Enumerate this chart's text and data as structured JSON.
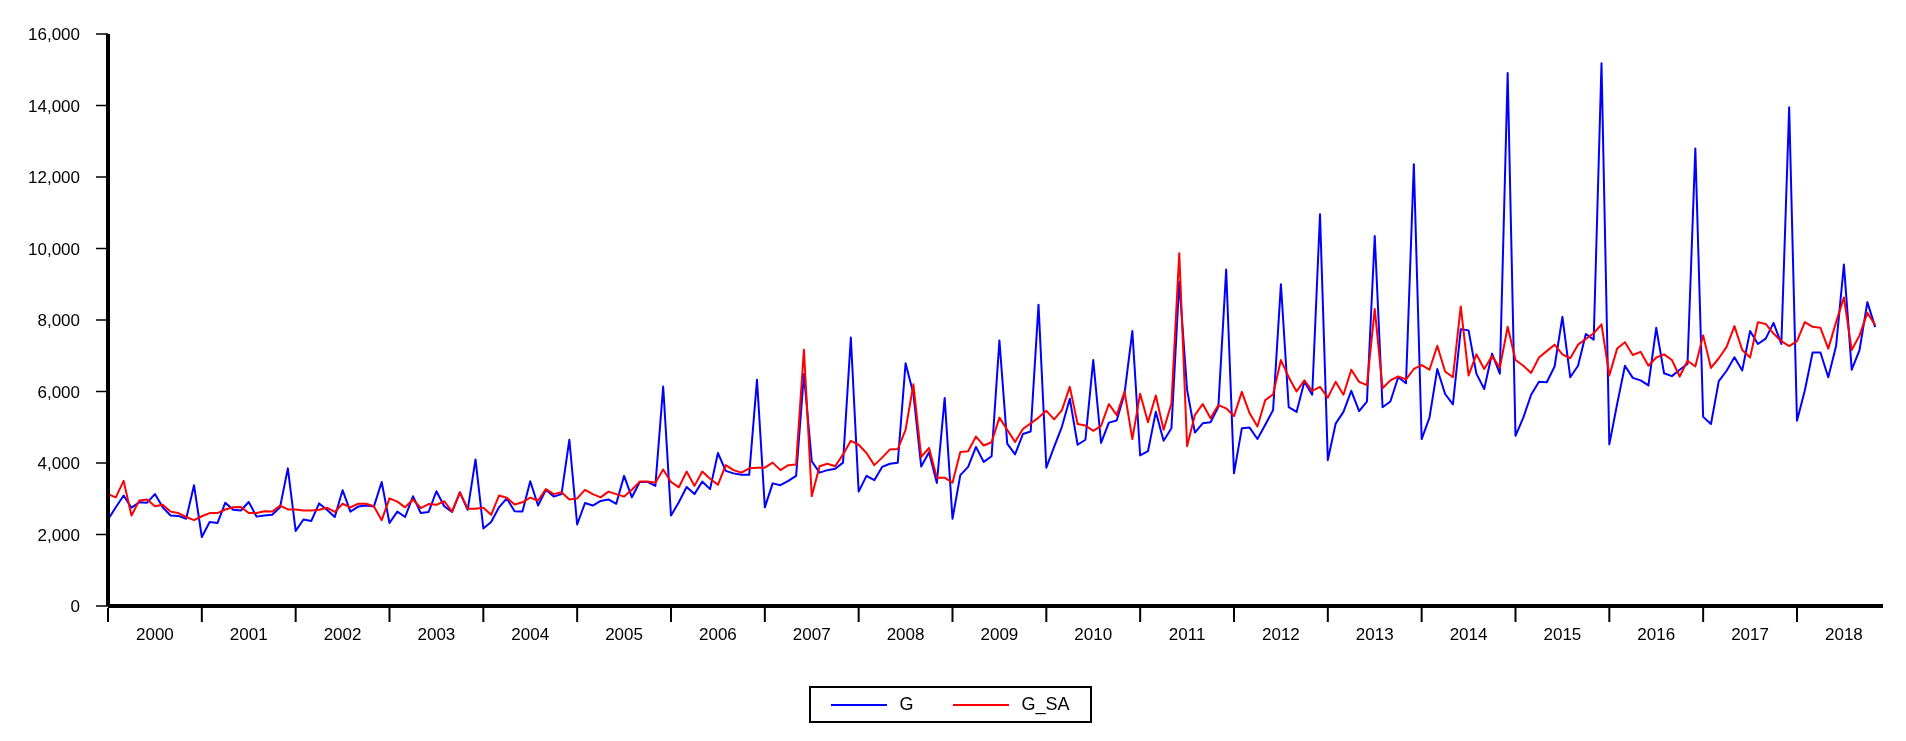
{
  "chart_data": {
    "type": "line",
    "x": [
      "2000-01",
      "2000-02",
      "2000-03",
      "2000-04",
      "2000-05",
      "2000-06",
      "2000-07",
      "2000-08",
      "2000-09",
      "2000-10",
      "2000-11",
      "2000-12",
      "2001-01",
      "2001-02",
      "2001-03",
      "2001-04",
      "2001-05",
      "2001-06",
      "2001-07",
      "2001-08",
      "2001-09",
      "2001-10",
      "2001-11",
      "2001-12",
      "2002-01",
      "2002-02",
      "2002-03",
      "2002-04",
      "2002-05",
      "2002-06",
      "2002-07",
      "2002-08",
      "2002-09",
      "2002-10",
      "2002-11",
      "2002-12",
      "2003-01",
      "2003-02",
      "2003-03",
      "2003-04",
      "2003-05",
      "2003-06",
      "2003-07",
      "2003-08",
      "2003-09",
      "2003-10",
      "2003-11",
      "2003-12",
      "2004-01",
      "2004-02",
      "2004-03",
      "2004-04",
      "2004-05",
      "2004-06",
      "2004-07",
      "2004-08",
      "2004-09",
      "2004-10",
      "2004-11",
      "2004-12",
      "2005-01",
      "2005-02",
      "2005-03",
      "2005-04",
      "2005-05",
      "2005-06",
      "2005-07",
      "2005-08",
      "2005-09",
      "2005-10",
      "2005-11",
      "2005-12",
      "2006-01",
      "2006-02",
      "2006-03",
      "2006-04",
      "2006-05",
      "2006-06",
      "2006-07",
      "2006-08",
      "2006-09",
      "2006-10",
      "2006-11",
      "2006-12",
      "2007-01",
      "2007-02",
      "2007-03",
      "2007-04",
      "2007-05",
      "2007-06",
      "2007-07",
      "2007-08",
      "2007-09",
      "2007-10",
      "2007-11",
      "2007-12",
      "2008-01",
      "2008-02",
      "2008-03",
      "2008-04",
      "2008-05",
      "2008-06",
      "2008-07",
      "2008-08",
      "2008-09",
      "2008-10",
      "2008-11",
      "2008-12",
      "2009-01",
      "2009-02",
      "2009-03",
      "2009-04",
      "2009-05",
      "2009-06",
      "2009-07",
      "2009-08",
      "2009-09",
      "2009-10",
      "2009-11",
      "2009-12",
      "2010-01",
      "2010-02",
      "2010-03",
      "2010-04",
      "2010-05",
      "2010-06",
      "2010-07",
      "2010-08",
      "2010-09",
      "2010-10",
      "2010-11",
      "2010-12",
      "2011-01",
      "2011-02",
      "2011-03",
      "2011-04",
      "2011-05",
      "2011-06",
      "2011-07",
      "2011-08",
      "2011-09",
      "2011-10",
      "2011-11",
      "2011-12",
      "2012-01",
      "2012-02",
      "2012-03",
      "2012-04",
      "2012-05",
      "2012-06",
      "2012-07",
      "2012-08",
      "2012-09",
      "2012-10",
      "2012-11",
      "2012-12",
      "2013-01",
      "2013-02",
      "2013-03",
      "2013-04",
      "2013-05",
      "2013-06",
      "2013-07",
      "2013-08",
      "2013-09",
      "2013-10",
      "2013-11",
      "2013-12",
      "2014-01",
      "2014-02",
      "2014-03",
      "2014-04",
      "2014-05",
      "2014-06",
      "2014-07",
      "2014-08",
      "2014-09",
      "2014-10",
      "2014-11",
      "2014-12",
      "2015-01",
      "2015-02",
      "2015-03",
      "2015-04",
      "2015-05",
      "2015-06",
      "2015-07",
      "2015-08",
      "2015-09",
      "2015-10",
      "2015-11",
      "2015-12",
      "2016-01",
      "2016-02",
      "2016-03",
      "2016-04",
      "2016-05",
      "2016-06",
      "2016-07",
      "2016-08",
      "2016-09",
      "2016-10",
      "2016-11",
      "2016-12",
      "2017-01",
      "2017-02",
      "2017-03",
      "2017-04",
      "2017-05",
      "2017-06",
      "2017-07",
      "2017-08",
      "2017-09",
      "2017-10",
      "2017-11",
      "2017-12",
      "2018-01",
      "2018-02",
      "2018-03",
      "2018-04",
      "2018-05",
      "2018-06",
      "2018-07",
      "2018-08",
      "2018-09",
      "2018-10",
      "2018-11"
    ],
    "series": [
      {
        "name": "G",
        "color": "#0000ff",
        "values": [
          2420,
          2760,
          3090,
          2750,
          2900,
          2890,
          3130,
          2760,
          2530,
          2520,
          2440,
          3380,
          1930,
          2350,
          2320,
          2890,
          2690,
          2670,
          2910,
          2500,
          2530,
          2550,
          2760,
          3850,
          2100,
          2420,
          2380,
          2870,
          2690,
          2490,
          3240,
          2640,
          2780,
          2810,
          2780,
          3470,
          2320,
          2640,
          2490,
          3070,
          2600,
          2630,
          3210,
          2790,
          2630,
          3180,
          2690,
          4100,
          2170,
          2350,
          2760,
          3010,
          2650,
          2640,
          3490,
          2810,
          3250,
          3060,
          3130,
          4650,
          2280,
          2880,
          2810,
          2940,
          2980,
          2860,
          3640,
          3040,
          3470,
          3470,
          3360,
          6140,
          2530,
          2900,
          3330,
          3130,
          3480,
          3270,
          4280,
          3780,
          3710,
          3670,
          3670,
          6330,
          2760,
          3430,
          3380,
          3500,
          3640,
          6490,
          4050,
          3730,
          3800,
          3840,
          4010,
          7510,
          3200,
          3640,
          3520,
          3890,
          3980,
          4010,
          6790,
          5940,
          3900,
          4300,
          3440,
          5820,
          2440,
          3660,
          3890,
          4450,
          4030,
          4190,
          7430,
          4540,
          4240,
          4810,
          4880,
          8430,
          3870,
          4450,
          5020,
          5800,
          4510,
          4650,
          6880,
          4560,
          5130,
          5190,
          5940,
          7690,
          4210,
          4330,
          5430,
          4620,
          4970,
          9070,
          6050,
          4850,
          5110,
          5140,
          5570,
          9410,
          3710,
          4970,
          4990,
          4670,
          5070,
          5480,
          9000,
          5560,
          5430,
          6270,
          5910,
          10960,
          4080,
          5100,
          5430,
          6020,
          5450,
          5720,
          10350,
          5560,
          5720,
          6400,
          6230,
          12360,
          4670,
          5270,
          6630,
          5930,
          5640,
          7740,
          7710,
          6500,
          6070,
          7060,
          6500,
          14910,
          4760,
          5270,
          5910,
          6270,
          6260,
          6700,
          8090,
          6400,
          6720,
          7610,
          7450,
          15180,
          4520,
          5650,
          6720,
          6380,
          6310,
          6170,
          7780,
          6510,
          6430,
          6610,
          6770,
          12800,
          5290,
          5090,
          6290,
          6580,
          6960,
          6590,
          7690,
          7330,
          7480,
          7920,
          7330,
          13950,
          5180,
          6030,
          7090,
          7090,
          6400,
          7270,
          9550,
          6610,
          7160,
          8500,
          7800
        ]
      },
      {
        "name": "G_SA",
        "color": "#ff0000",
        "values": [
          3130,
          3040,
          3500,
          2530,
          2950,
          2980,
          2790,
          2830,
          2640,
          2600,
          2490,
          2400,
          2510,
          2600,
          2600,
          2700,
          2760,
          2770,
          2600,
          2600,
          2650,
          2640,
          2810,
          2700,
          2700,
          2670,
          2670,
          2690,
          2750,
          2630,
          2860,
          2760,
          2860,
          2860,
          2790,
          2400,
          3010,
          2920,
          2760,
          2980,
          2740,
          2850,
          2830,
          2930,
          2640,
          3180,
          2720,
          2720,
          2750,
          2550,
          3090,
          3030,
          2840,
          2900,
          3030,
          2950,
          3270,
          3130,
          3180,
          2980,
          3010,
          3250,
          3130,
          3040,
          3200,
          3130,
          3060,
          3250,
          3480,
          3480,
          3450,
          3820,
          3470,
          3320,
          3760,
          3360,
          3760,
          3560,
          3390,
          3940,
          3800,
          3730,
          3850,
          3870,
          3870,
          4010,
          3800,
          3940,
          3960,
          7170,
          3070,
          3910,
          3980,
          3910,
          4240,
          4620,
          4510,
          4280,
          3940,
          4150,
          4380,
          4390,
          4930,
          6200,
          4170,
          4420,
          3590,
          3590,
          3450,
          4310,
          4330,
          4740,
          4490,
          4580,
          5270,
          4930,
          4590,
          4950,
          5110,
          5270,
          5460,
          5220,
          5480,
          6130,
          5090,
          5050,
          4900,
          5040,
          5650,
          5340,
          6000,
          4670,
          5940,
          5140,
          5890,
          4930,
          5660,
          9870,
          4470,
          5340,
          5650,
          5250,
          5620,
          5530,
          5310,
          5990,
          5390,
          5020,
          5760,
          5920,
          6880,
          6400,
          6000,
          6310,
          6020,
          6130,
          5830,
          6270,
          5910,
          6610,
          6270,
          6180,
          8310,
          6090,
          6310,
          6420,
          6340,
          6630,
          6740,
          6610,
          7280,
          6560,
          6400,
          8380,
          6450,
          7040,
          6630,
          6990,
          6660,
          7810,
          6880,
          6720,
          6520,
          6950,
          7130,
          7310,
          7040,
          6930,
          7310,
          7470,
          7630,
          7880,
          6450,
          7200,
          7380,
          7020,
          7110,
          6720,
          6950,
          7040,
          6880,
          6420,
          6860,
          6700,
          7570,
          6660,
          6930,
          7250,
          7830,
          7160,
          6950,
          7940,
          7890,
          7620,
          7410,
          7270,
          7410,
          7940,
          7810,
          7780,
          7200,
          7940,
          8630,
          7160,
          7570,
          8200,
          7860
        ]
      }
    ],
    "xlim": [
      "2000-01",
      "2018-12"
    ],
    "xticks": [
      {
        "value": "2000-01",
        "label": null
      },
      {
        "value": "2000-07",
        "label": "2000"
      },
      {
        "value": "2001-01",
        "label": null
      },
      {
        "value": "2001-07",
        "label": "2001"
      },
      {
        "value": "2002-01",
        "label": null
      },
      {
        "value": "2002-07",
        "label": "2002"
      },
      {
        "value": "2003-01",
        "label": null
      },
      {
        "value": "2003-07",
        "label": "2003"
      },
      {
        "value": "2004-01",
        "label": null
      },
      {
        "value": "2004-07",
        "label": "2004"
      },
      {
        "value": "2005-01",
        "label": null
      },
      {
        "value": "2005-07",
        "label": "2005"
      },
      {
        "value": "2006-01",
        "label": null
      },
      {
        "value": "2006-07",
        "label": "2006"
      },
      {
        "value": "2007-01",
        "label": null
      },
      {
        "value": "2007-07",
        "label": "2007"
      },
      {
        "value": "2008-01",
        "label": null
      },
      {
        "value": "2008-07",
        "label": "2008"
      },
      {
        "value": "2009-01",
        "label": null
      },
      {
        "value": "2009-07",
        "label": "2009"
      },
      {
        "value": "2010-01",
        "label": null
      },
      {
        "value": "2010-07",
        "label": "2010"
      },
      {
        "value": "2011-01",
        "label": null
      },
      {
        "value": "2011-07",
        "label": "2011"
      },
      {
        "value": "2012-01",
        "label": null
      },
      {
        "value": "2012-07",
        "label": "2012"
      },
      {
        "value": "2013-01",
        "label": null
      },
      {
        "value": "2013-07",
        "label": "2013"
      },
      {
        "value": "2014-01",
        "label": null
      },
      {
        "value": "2014-07",
        "label": "2014"
      },
      {
        "value": "2015-01",
        "label": null
      },
      {
        "value": "2015-07",
        "label": "2015"
      },
      {
        "value": "2016-01",
        "label": null
      },
      {
        "value": "2016-07",
        "label": "2016"
      },
      {
        "value": "2017-01",
        "label": null
      },
      {
        "value": "2017-07",
        "label": "2017"
      },
      {
        "value": "2018-01",
        "label": null
      },
      {
        "value": "2018-07",
        "label": "2018"
      }
    ],
    "ylim": [
      0,
      16000
    ],
    "yticks": [
      {
        "value": 0,
        "label": "0"
      },
      {
        "value": 2000,
        "label": "2,000"
      },
      {
        "value": 4000,
        "label": "4,000"
      },
      {
        "value": 6000,
        "label": "6,000"
      },
      {
        "value": 8000,
        "label": "8,000"
      },
      {
        "value": 10000,
        "label": "10,000"
      },
      {
        "value": 12000,
        "label": "12,000"
      },
      {
        "value": 14000,
        "label": "14,000"
      },
      {
        "value": 16000,
        "label": "16,000"
      }
    ],
    "grid": false,
    "legend": "bottom",
    "marker": "none",
    "line_style": "solid"
  }
}
